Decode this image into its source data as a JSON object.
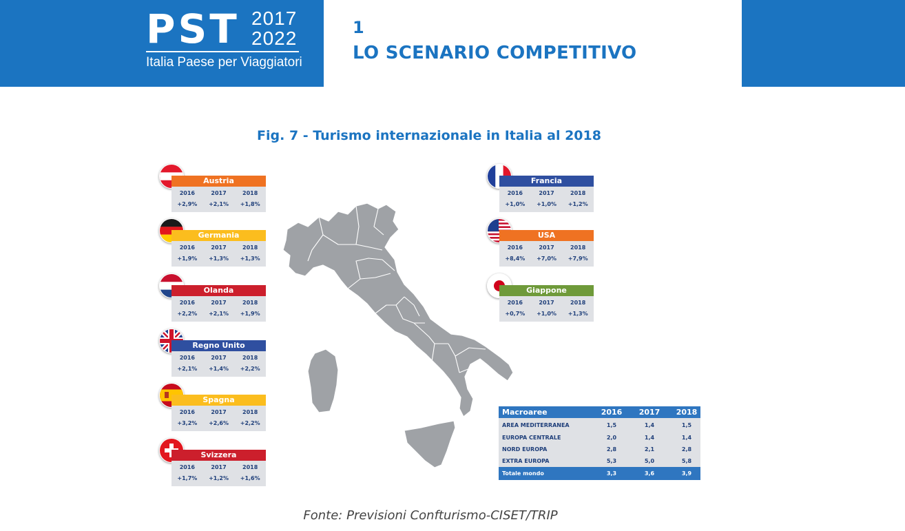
{
  "header": {
    "logo_main": "PST",
    "logo_year_a": "2017",
    "logo_year_b": "2022",
    "logo_subtitle": "Italia Paese per Viaggiatori",
    "section_number": "1",
    "section_title": "LO SCENARIO COMPETITIVO",
    "brand_color": "#1b74c1"
  },
  "figure": {
    "title": "Fig. 7 - Turismo internazionale in Italia al 2018",
    "source": "Fonte: Previsioni Confturismo-CISET/TRIP"
  },
  "countries": [
    {
      "name": "Austria",
      "color": "#ef7222",
      "flag": "austria-flag-icon",
      "years": [
        "2016",
        "2017",
        "2018"
      ],
      "values": [
        "+2,9%",
        "+2,1%",
        "+1,8%"
      ]
    },
    {
      "name": "Germania",
      "color": "#fbbd1e",
      "flag": "germany-flag-icon",
      "years": [
        "2016",
        "2017",
        "2018"
      ],
      "values": [
        "+1,9%",
        "+1,3%",
        "+1,3%"
      ]
    },
    {
      "name": "Olanda",
      "color": "#cc1f2c",
      "flag": "netherlands-flag-icon",
      "years": [
        "2016",
        "2017",
        "2018"
      ],
      "values": [
        "+2,2%",
        "+2,1%",
        "+1,9%"
      ]
    },
    {
      "name": "Regno Unito",
      "color": "#2f4fa0",
      "flag": "uk-flag-icon",
      "years": [
        "2016",
        "2017",
        "2018"
      ],
      "values": [
        "+2,1%",
        "+1,4%",
        "+2,2%"
      ]
    },
    {
      "name": "Spagna",
      "color": "#fbbd1e",
      "flag": "spain-flag-icon",
      "years": [
        "2016",
        "2017",
        "2018"
      ],
      "values": [
        "+3,2%",
        "+2,6%",
        "+2,2%"
      ]
    },
    {
      "name": "Svizzera",
      "color": "#cc1f2c",
      "flag": "switzerland-flag-icon",
      "years": [
        "2016",
        "2017",
        "2018"
      ],
      "values": [
        "+1,7%",
        "+1,2%",
        "+1,6%"
      ]
    },
    {
      "name": "Francia",
      "color": "#2f4fa0",
      "flag": "france-flag-icon",
      "years": [
        "2016",
        "2017",
        "2018"
      ],
      "values": [
        "+1,0%",
        "+1,0%",
        "+1,2%"
      ]
    },
    {
      "name": "USA",
      "color": "#ef7222",
      "flag": "usa-flag-icon",
      "years": [
        "2016",
        "2017",
        "2018"
      ],
      "values": [
        "+8,4%",
        "+7,0%",
        "+7,9%"
      ]
    },
    {
      "name": "Giappone",
      "color": "#6f9a3a",
      "flag": "japan-flag-icon",
      "years": [
        "2016",
        "2017",
        "2018"
      ],
      "values": [
        "+0,7%",
        "+1,0%",
        "+1,3%"
      ]
    }
  ],
  "macro": {
    "header": [
      "Macroaree",
      "2016",
      "2017",
      "2018"
    ],
    "rows": [
      [
        "AREA MEDITERRANEA",
        "1,5",
        "1,4",
        "1,5"
      ],
      [
        "EUROPA CENTRALE",
        "2,0",
        "1,4",
        "1,4"
      ],
      [
        "NORD EUROPA",
        "2,8",
        "2,1",
        "2,8"
      ],
      [
        "EXTRA EUROPA",
        "5,3",
        "5,0",
        "5,8"
      ]
    ],
    "total": [
      "Totale mondo",
      "3,3",
      "3,6",
      "3,9"
    ]
  }
}
